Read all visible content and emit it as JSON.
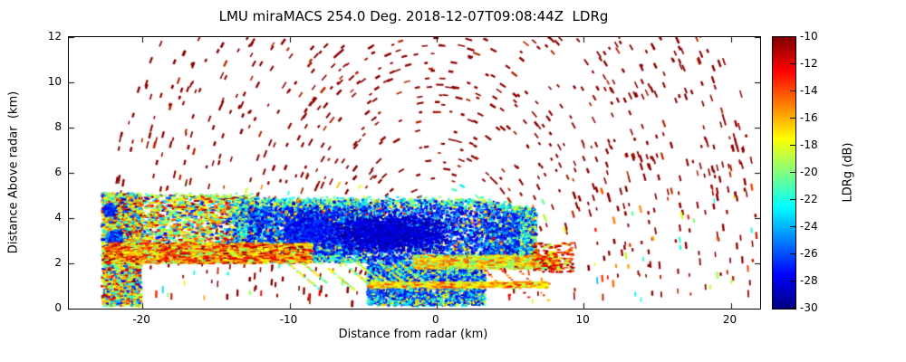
{
  "chart_data": {
    "type": "heatmap",
    "title": "LMU miraMACS 254.0 Deg. 2018-12-07T09:08:44Z  LDRg",
    "xlabel": "Distance from radar (km)",
    "ylabel": "Distance Above radar  (km)",
    "xlim": [
      -25,
      22
    ],
    "ylim": [
      0,
      12
    ],
    "grid": false,
    "xticks": {
      "values": [
        -20,
        -10,
        0,
        10,
        20
      ],
      "labels": [
        "-20",
        "-10",
        "0",
        "10",
        "20"
      ]
    },
    "yticks": {
      "values": [
        0,
        2,
        4,
        6,
        8,
        10,
        12
      ],
      "labels": [
        "0",
        "2",
        "4",
        "6",
        "8",
        "10",
        "12"
      ]
    },
    "colorbar": {
      "label": "LDRg (dB)",
      "vmin": -30,
      "vmax": -10,
      "tick_values": [
        -10,
        -12,
        -14,
        -16,
        -18,
        -20,
        -22,
        -24,
        -26,
        -28,
        -30
      ],
      "tick_labels": [
        "-10",
        "-12",
        "-14",
        "-16",
        "-18",
        "-20",
        "-22",
        "-24",
        "-26",
        "-28",
        "-30"
      ],
      "colormap": "jet",
      "gradient_stops": [
        "#00007f 0%",
        "#0000ff 12.5%",
        "#00ffff 37.5%",
        "#ffff00 62.5%",
        "#ff0000 87.5%",
        "#7f0000 100%"
      ],
      "jet_rgb_stops": [
        [
          0,
          0,
          0,
          127
        ],
        [
          0.125,
          0,
          0,
          255
        ],
        [
          0.375,
          0,
          255,
          255
        ],
        [
          0.625,
          255,
          255,
          0
        ],
        [
          0.875,
          255,
          0,
          0
        ],
        [
          1,
          127,
          0,
          0
        ]
      ]
    },
    "scan": {
      "instrument": "LMU miraMACS",
      "scan_type": "RHI",
      "azimuth_deg": 254.0,
      "timestamp": "2018-12-07T09:08:44Z",
      "quantity": "LDRg"
    },
    "description": "RHI cloud-radar scan of linear depolarization ratio. Dark-red receiver-noise speckle is arranged in concentric range-gate arcs out to ~23 km. A stratiform cloud/precipitation echo (deep blue core, LDR near -30 to -26 dB, rimmed by cyan/green) extends from about x=-22.5 to x=+8 km between 0 and 5 km height, with a bright yellow/orange layered band near 2 km, a thin enhanced layer near 1 km, slanted fall streaks below the cloud base, and a noisy multicolour column at far range on the left.",
    "echo": {
      "speckle": {
        "max_range_km": 23.0,
        "gate_step_km": 0.37,
        "color_dominant": "#8c0000"
      },
      "left_column": {
        "x": [
          -22.7,
          -20.1
        ],
        "y": [
          0.1,
          5.1
        ]
      },
      "wedge": {
        "x": [
          -22.7,
          -12.3
        ],
        "y_bottom": 2.0,
        "y_top": 5.0
      },
      "main_cloud": {
        "x": [
          -13.8,
          6.8
        ],
        "top": 4.8,
        "shelf_bottom": 2.05,
        "core_x": [
          -4.7,
          3.3
        ],
        "core_bottom": 0.12,
        "right_bottom": 1.85
      },
      "bright_band_left": {
        "x": [
          -22.6,
          -8.5
        ],
        "y_center": 2.45,
        "half_width": 0.45
      },
      "bright_band_right": {
        "x": [
          -1.5,
          8.2
        ],
        "y_center": 2.05,
        "half_width": 0.3
      },
      "low_band": {
        "x": [
          -4.6,
          7.6
        ],
        "y_center": 1.05,
        "half_width": 0.12
      },
      "fall_streaks": {
        "x_start": -10.5,
        "count": 7,
        "spacing": 1.25,
        "y_start": 2.05,
        "dx": 3.2,
        "dy": -1.7
      },
      "right_tail": {
        "x": [
          6.6,
          9.3
        ],
        "y": [
          1.6,
          2.9
        ]
      }
    }
  }
}
